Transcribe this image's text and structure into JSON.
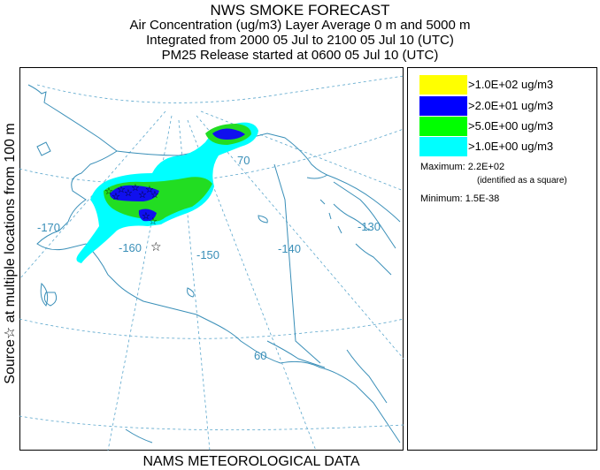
{
  "header": {
    "title": "NWS SMOKE FORECAST",
    "line2": "Air Concentration (ug/m3) Layer Average    0 m and  5000 m",
    "line3": "Integrated from 2000 05 Jul to 2100 05 Jul 10 (UTC)",
    "line4": "PM25 Release started at 0600 05 Jul 10 (UTC)"
  },
  "side_label": "Source☆ at multiple locations  from   100 m",
  "footer": "NAMS METEOROLOGICAL DATA",
  "map": {
    "lon_labels": [
      "-170",
      "-160",
      "-150",
      "-140",
      "-130"
    ],
    "lat_labels": [
      "70",
      "60"
    ],
    "source_symbol": "☆",
    "colors": {
      "grid": "#5aa6cc",
      "coast": "#3a8fb8",
      "cyan": "#00ffff",
      "green": "#22dd22",
      "blue": "#1010ee",
      "yellow": "#ffff00"
    }
  },
  "legend": {
    "items": [
      {
        "label": ">1.0E+02 ug/m3",
        "color": "#ffff00"
      },
      {
        "label": ">2.0E+01 ug/m3",
        "color": "#0000ff"
      },
      {
        "label": ">5.0E+00 ug/m3",
        "color": "#00ff00"
      },
      {
        "label": ">1.0E+00 ug/m3",
        "color": "#00ffff"
      }
    ],
    "maximum_label": "Maximum: 2.2E+02",
    "maximum_note": "(identified as a square)",
    "minimum_label": "Minimum: 1.5E-38"
  }
}
